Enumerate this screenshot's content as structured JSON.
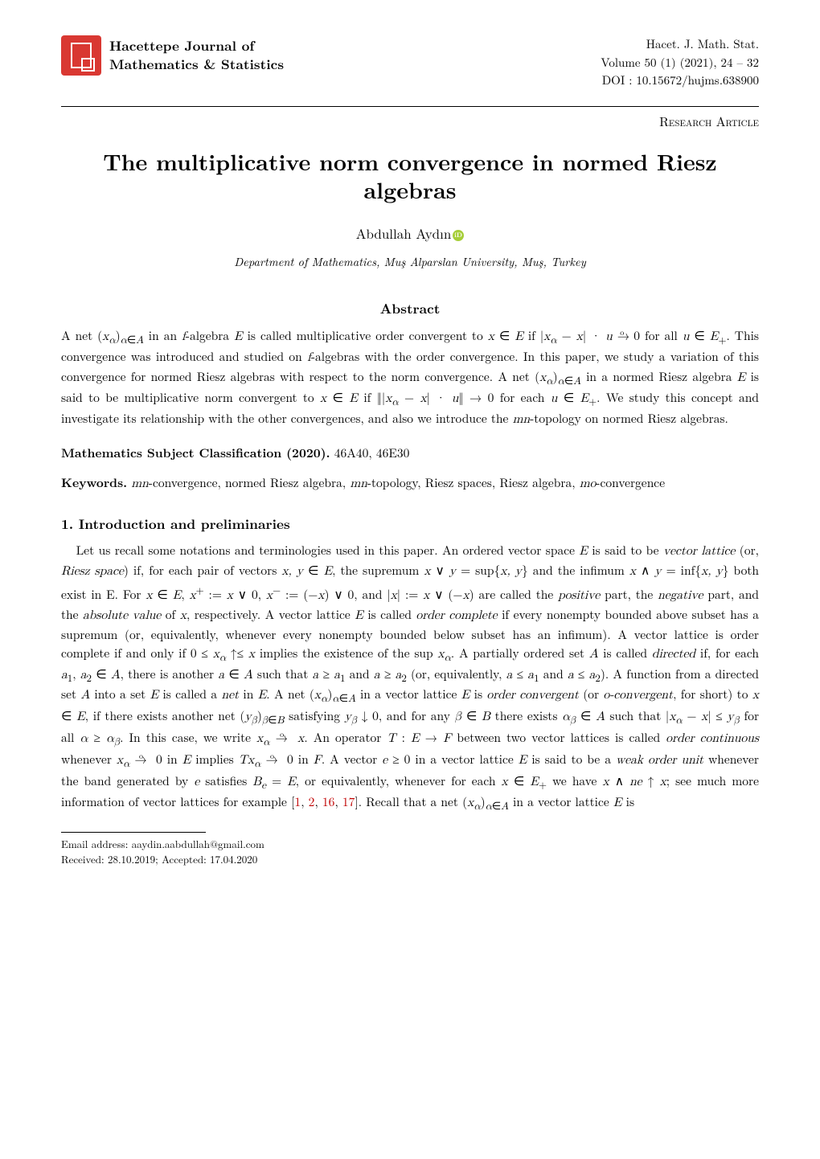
{
  "header": {
    "journal_line1": "Hacettepe Journal of",
    "journal_line2": "Mathematics & Statistics",
    "right_line1": "Hacet. J. Math. Stat.",
    "right_line2": "Volume 50 (1) (2021), 24 – 32",
    "right_line3": "DOI : 10.15672/hujms.638900",
    "article_type": "Research Article",
    "logo_bg": "#d93832",
    "logo_border": "#ffffff"
  },
  "title": "The multiplicative norm convergence in normed Riesz algebras",
  "author": "Abdullah Aydın",
  "affiliation": "Department of Mathematics, Muş Alparslan University, Muş, Turkey",
  "abstract": {
    "heading": "Abstract",
    "msc_label": "Mathematics Subject Classification (2020).",
    "msc_value": " 46A40, 46E30",
    "kw_label": "Keywords.",
    "kw_value": " mn-convergence, normed Riesz algebra, mn-topology, Riesz spaces, Riesz algebra, mo-convergence"
  },
  "section1": {
    "heading": "1. Introduction and preliminaries"
  },
  "footer": {
    "email": "Email address: aaydin.aabdullah@gmail.com",
    "dates": "Received: 28.10.2019; Accepted: 17.04.2020"
  },
  "refs": [
    "1",
    "2",
    "16",
    "17"
  ],
  "colors": {
    "text": "#000000",
    "ref": "#c00000",
    "orcid": "#a6ce39"
  },
  "fonts": {
    "body_size_pt": 11,
    "title_size_pt": 20,
    "heading_size_pt": 12
  }
}
